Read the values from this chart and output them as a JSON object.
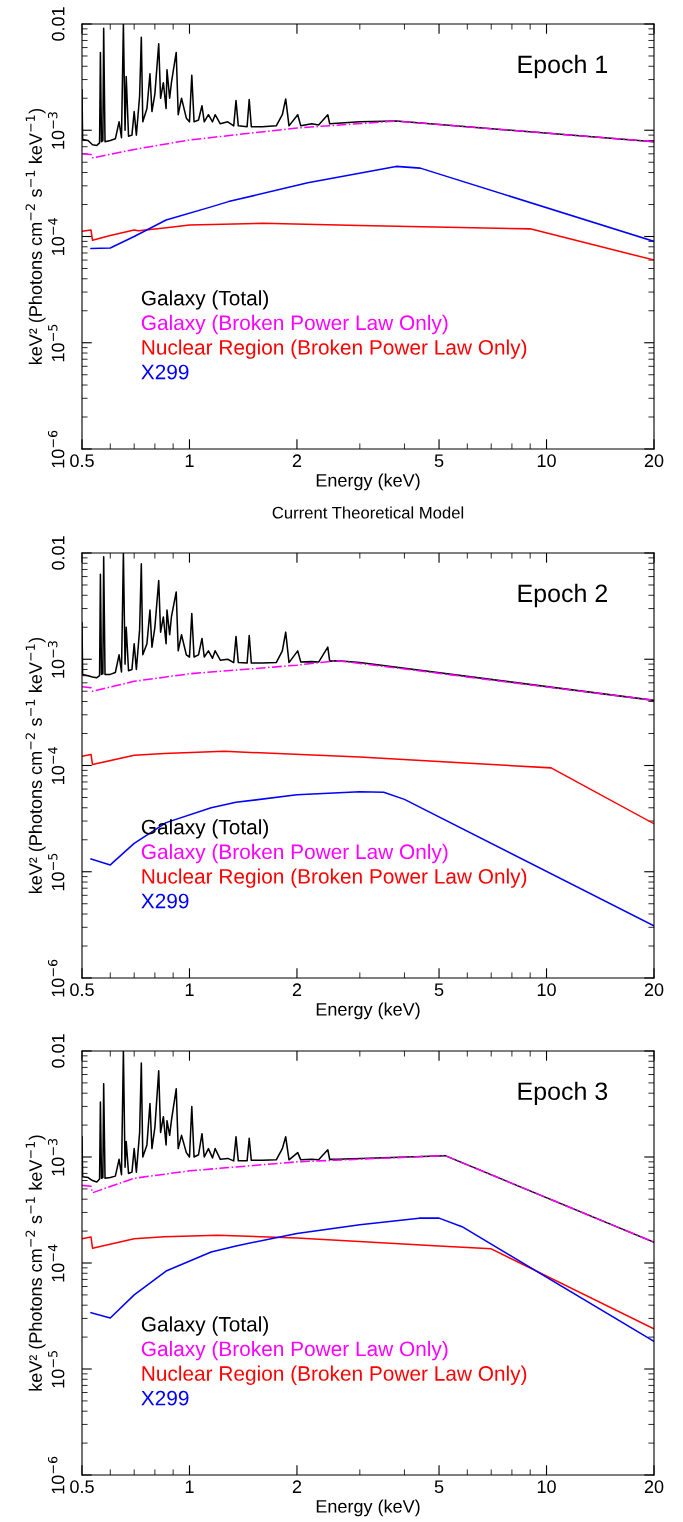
{
  "chart_data": [
    {
      "type": "line",
      "title": "Epoch 1",
      "xlabel": "Energy (keV)",
      "ylabel": "keV² (Photons cm$^{−2}$ s$^{−1}$ keV$^{−1}$)",
      "annotations": [
        "Current Theoretical Model"
      ],
      "log": "xy",
      "xlim": [
        0.5,
        20
      ],
      "ylim": [
        1e-06,
        0.01
      ],
      "xticks": [
        0.5,
        1,
        2,
        5,
        10,
        20
      ],
      "yticks": [
        {
          "value": 1e-06,
          "label": "10$^{−6}$"
        },
        {
          "value": 1e-05,
          "label": "10$^{−5}$"
        },
        {
          "value": 0.0001,
          "label": "10$^{−4}$"
        },
        {
          "value": 0.001,
          "label": "10$^{−3}$"
        },
        {
          "value": 0.01,
          "label": "0.01"
        }
      ],
      "legend": "bottom left",
      "grid": false,
      "series": [
        {
          "name": "Galaxy (Total)",
          "color": "#000000",
          "line_style": "solid",
          "x": [
            0.5,
            0.502,
            0.52,
            0.535,
            0.55,
            0.56,
            0.563,
            0.567,
            0.572,
            0.575,
            0.58,
            0.6,
            0.62,
            0.635,
            0.645,
            0.653,
            0.66,
            0.665,
            0.675,
            0.69,
            0.7,
            0.71,
            0.725,
            0.733,
            0.74,
            0.76,
            0.775,
            0.785,
            0.8,
            0.82,
            0.83,
            0.845,
            0.86,
            0.865,
            0.88,
            0.89,
            0.918,
            0.93,
            0.95,
            0.98,
            1.0,
            1.015,
            1.03,
            1.06,
            1.084,
            1.1,
            1.13,
            1.16,
            1.18,
            1.22,
            1.28,
            1.33,
            1.35,
            1.37,
            1.45,
            1.47,
            1.49,
            1.6,
            1.75,
            1.82,
            1.86,
            1.9,
            2.01,
            2.05,
            2.2,
            2.3,
            2.44,
            2.47,
            3.0,
            3.79,
            20
          ],
          "values": [
            0.0024,
            0.00082,
            0.0008,
            0.00073,
            0.00072,
            0.00076,
            0.0054,
            0.00078,
            0.0008,
            0.0091,
            0.00078,
            0.0008,
            0.00083,
            0.0012,
            0.00085,
            0.01,
            0.001,
            0.0032,
            0.00088,
            0.0009,
            0.0015,
            0.0009,
            0.0021,
            0.0075,
            0.0012,
            0.0016,
            0.0034,
            0.0015,
            0.0022,
            0.0065,
            0.002,
            0.0028,
            0.0016,
            0.0037,
            0.002,
            0.0028,
            0.0054,
            0.0014,
            0.002,
            0.0013,
            0.0012,
            0.0033,
            0.0012,
            0.00125,
            0.0017,
            0.0012,
            0.0014,
            0.0012,
            0.0014,
            0.00115,
            0.0012,
            0.0011,
            0.0019,
            0.0011,
            0.00108,
            0.00195,
            0.00108,
            0.00108,
            0.0011,
            0.0014,
            0.00197,
            0.0011,
            0.0014,
            0.0011,
            0.00115,
            0.00112,
            0.0014,
            0.00115,
            0.0012,
            0.00122,
            0.00078
          ]
        },
        {
          "name": "Galaxy (Broken Power Law Only)",
          "color": "#ff00ff",
          "line_style": "dashdot",
          "x": [
            0.5,
            0.53,
            0.535,
            0.7,
            1.0,
            2.0,
            3.79,
            20
          ],
          "values": [
            0.0006,
            0.00059,
            0.00055,
            0.00066,
            0.00081,
            0.00105,
            0.00122,
            0.00078
          ]
        },
        {
          "name": "Nuclear Region (Broken Power Law Only)",
          "color": "#ff0000",
          "line_style": "solid",
          "x": [
            0.5,
            0.53,
            0.535,
            0.6,
            0.7,
            0.72,
            0.85,
            1.0,
            1.6,
            3.0,
            9.0,
            20
          ],
          "values": [
            0.000112,
            0.000115,
            9.2e-05,
            0.000102,
            0.000115,
            0.000113,
            0.00012,
            0.000128,
            0.000133,
            0.000127,
            0.000118,
            6e-05
          ]
        },
        {
          "name": "X299",
          "color": "#0000ff",
          "line_style": "solid",
          "x": [
            0.53,
            0.6,
            0.7,
            0.86,
            1.15,
            1.286,
            2.145,
            3.79,
            4.43,
            20
          ],
          "values": [
            7.7e-05,
            7.8e-05,
            0.0001,
            0.000143,
            0.00019,
            0.000213,
            0.00032,
            0.000457,
            0.00044,
            9e-05
          ]
        }
      ]
    },
    {
      "type": "line",
      "title": "Epoch 2",
      "xlabel": "Energy (keV)",
      "ylabel": "keV² (Photons cm$^{−2}$ s$^{−1}$ keV$^{−1}$)",
      "log": "xy",
      "xlim": [
        0.5,
        20
      ],
      "ylim": [
        1e-06,
        0.01
      ],
      "xticks": [
        0.5,
        1,
        2,
        5,
        10,
        20
      ],
      "yticks": [
        {
          "value": 1e-06,
          "label": "10$^{−6}$"
        },
        {
          "value": 1e-05,
          "label": "10$^{−5}$"
        },
        {
          "value": 0.0001,
          "label": "10$^{−4}$"
        },
        {
          "value": 0.001,
          "label": "10$^{−3}$"
        },
        {
          "value": 0.01,
          "label": "0.01"
        }
      ],
      "legend": "bottom left",
      "grid": false,
      "series": [
        {
          "name": "Galaxy (Total)",
          "color": "#000000",
          "line_style": "solid",
          "x": [
            0.5,
            0.502,
            0.52,
            0.535,
            0.55,
            0.56,
            0.563,
            0.567,
            0.572,
            0.575,
            0.58,
            0.6,
            0.62,
            0.635,
            0.645,
            0.653,
            0.66,
            0.665,
            0.675,
            0.69,
            0.7,
            0.71,
            0.725,
            0.733,
            0.74,
            0.76,
            0.775,
            0.785,
            0.8,
            0.82,
            0.83,
            0.845,
            0.86,
            0.865,
            0.88,
            0.89,
            0.918,
            0.93,
            0.95,
            0.98,
            1.0,
            1.015,
            1.03,
            1.06,
            1.084,
            1.1,
            1.13,
            1.16,
            1.18,
            1.22,
            1.28,
            1.33,
            1.35,
            1.37,
            1.45,
            1.47,
            1.49,
            1.6,
            1.75,
            1.82,
            1.86,
            1.9,
            2.01,
            2.05,
            2.2,
            2.3,
            2.44,
            2.47,
            2.6,
            3.0,
            20
          ],
          "values": [
            0.0022,
            0.00072,
            0.0007,
            0.00068,
            0.00067,
            0.0007,
            0.0063,
            0.00072,
            0.00073,
            0.0092,
            0.00072,
            0.00072,
            0.00075,
            0.0011,
            0.00076,
            0.01,
            0.0009,
            0.002,
            0.00078,
            0.0008,
            0.0014,
            0.0008,
            0.0019,
            0.0079,
            0.0011,
            0.0014,
            0.0029,
            0.0013,
            0.002,
            0.0055,
            0.0018,
            0.0025,
            0.0014,
            0.0029,
            0.0017,
            0.0025,
            0.0043,
            0.0012,
            0.0017,
            0.0011,
            0.00105,
            0.0027,
            0.00105,
            0.0011,
            0.00157,
            0.00105,
            0.0012,
            0.00102,
            0.0012,
            0.00098,
            0.001,
            0.00093,
            0.00164,
            0.00093,
            0.00092,
            0.00167,
            0.00092,
            0.00092,
            0.00093,
            0.0012,
            0.0018,
            0.00093,
            0.0012,
            0.00094,
            0.00095,
            0.00094,
            0.0013,
            0.00096,
            0.00097,
            0.00093,
            0.00041
          ]
        },
        {
          "name": "Galaxy (Broken Power Law Only)",
          "color": "#ff00ff",
          "line_style": "dashdot",
          "x": [
            0.5,
            0.53,
            0.535,
            0.7,
            1.0,
            2.0,
            2.6,
            20
          ],
          "values": [
            0.00055,
            0.00054,
            0.0005,
            0.00062,
            0.00073,
            0.00088,
            0.00097,
            0.00041
          ]
        },
        {
          "name": "Nuclear Region (Broken Power Law Only)",
          "color": "#ff0000",
          "line_style": "solid",
          "x": [
            0.5,
            0.53,
            0.535,
            0.7,
            0.85,
            1.25,
            3.0,
            10.3,
            20
          ],
          "values": [
            0.000122,
            0.000127,
            0.000102,
            0.000125,
            0.00013,
            0.000136,
            0.00012,
            9.5e-05,
            2.83e-05
          ]
        },
        {
          "name": "X299",
          "color": "#0000ff",
          "line_style": "solid",
          "x": [
            0.53,
            0.6,
            0.7,
            0.86,
            1.15,
            1.35,
            2.0,
            3.0,
            3.5,
            4.0,
            20
          ],
          "values": [
            1.32e-05,
            1.16e-05,
            1.85e-05,
            2.9e-05,
            4e-05,
            4.5e-05,
            5.3e-05,
            5.65e-05,
            5.6e-05,
            4.8e-05,
            3.1e-06
          ]
        }
      ]
    },
    {
      "type": "line",
      "title": "Epoch 3",
      "xlabel": "Energy (keV)",
      "ylabel": "keV² (Photons cm$^{−2}$ s$^{−1}$ keV$^{−1}$)",
      "log": "xy",
      "xlim": [
        0.5,
        20
      ],
      "ylim": [
        1e-06,
        0.01
      ],
      "xticks": [
        0.5,
        1,
        2,
        5,
        10,
        20
      ],
      "yticks": [
        {
          "value": 1e-06,
          "label": "10$^{−6}$"
        },
        {
          "value": 1e-05,
          "label": "10$^{−5}$"
        },
        {
          "value": 0.0001,
          "label": "10$^{−4}$"
        },
        {
          "value": 0.001,
          "label": "10$^{−3}$"
        },
        {
          "value": 0.01,
          "label": "0.01"
        }
      ],
      "legend": "bottom left",
      "grid": false,
      "series": [
        {
          "name": "Galaxy (Total)",
          "color": "#000000",
          "line_style": "solid",
          "x": [
            0.5,
            0.502,
            0.52,
            0.535,
            0.55,
            0.56,
            0.563,
            0.567,
            0.572,
            0.575,
            0.58,
            0.6,
            0.62,
            0.635,
            0.645,
            0.653,
            0.66,
            0.665,
            0.675,
            0.69,
            0.7,
            0.71,
            0.725,
            0.733,
            0.74,
            0.76,
            0.775,
            0.785,
            0.8,
            0.82,
            0.83,
            0.845,
            0.86,
            0.865,
            0.88,
            0.89,
            0.918,
            0.93,
            0.95,
            0.98,
            1.0,
            1.015,
            1.03,
            1.06,
            1.084,
            1.1,
            1.13,
            1.16,
            1.18,
            1.22,
            1.28,
            1.33,
            1.35,
            1.37,
            1.45,
            1.47,
            1.49,
            1.6,
            1.75,
            1.82,
            1.86,
            1.9,
            2.01,
            2.05,
            2.2,
            2.3,
            2.44,
            2.47,
            2.6,
            5.2,
            20
          ],
          "values": [
            0.00155,
            0.00065,
            0.00064,
            0.0006,
            0.00058,
            0.00062,
            0.0033,
            0.00063,
            0.00064,
            0.0049,
            0.00063,
            0.00064,
            0.00066,
            0.00095,
            0.00068,
            0.01,
            0.0008,
            0.0014,
            0.0007,
            0.00072,
            0.0012,
            0.00072,
            0.0017,
            0.0077,
            0.001,
            0.0013,
            0.0032,
            0.0012,
            0.0019,
            0.0065,
            0.0017,
            0.0024,
            0.0013,
            0.0022,
            0.0016,
            0.0022,
            0.0044,
            0.0012,
            0.0016,
            0.0011,
            0.001,
            0.003,
            0.001,
            0.00105,
            0.00166,
            0.001,
            0.0012,
            0.00098,
            0.0012,
            0.00095,
            0.00097,
            0.00092,
            0.00155,
            0.00092,
            0.00092,
            0.0015,
            0.00093,
            0.00093,
            0.00094,
            0.0012,
            0.00155,
            0.00094,
            0.0011,
            0.00094,
            0.00095,
            0.00094,
            0.00117,
            0.00095,
            0.00095,
            0.00103,
            0.000157
          ]
        },
        {
          "name": "Galaxy (Broken Power Law Only)",
          "color": "#ff00ff",
          "line_style": "dashdot",
          "x": [
            0.5,
            0.53,
            0.535,
            0.7,
            1.0,
            2.0,
            5.2,
            20
          ],
          "values": [
            0.00054,
            0.00053,
            0.00046,
            0.00063,
            0.00074,
            0.0009,
            0.00103,
            0.000157
          ]
        },
        {
          "name": "Nuclear Region (Broken Power Law Only)",
          "color": "#ff0000",
          "line_style": "solid",
          "x": [
            0.5,
            0.53,
            0.535,
            0.7,
            0.85,
            1.2,
            2.0,
            5.0,
            7.0,
            20
          ],
          "values": [
            0.000169,
            0.000176,
            0.000138,
            0.000169,
            0.000177,
            0.000183,
            0.000172,
            0.000145,
            0.000136,
            2.39e-05
          ]
        },
        {
          "name": "X299",
          "color": "#0000ff",
          "line_style": "solid",
          "x": [
            0.53,
            0.6,
            0.7,
            0.86,
            1.15,
            1.35,
            2.0,
            3.0,
            4.4,
            5.0,
            5.8,
            20
          ],
          "values": [
            3.4e-05,
            3.03e-05,
            5e-05,
            8.4e-05,
            0.000127,
            0.000145,
            0.00019,
            0.00023,
            0.000265,
            0.000265,
            0.00022,
            1.82e-05
          ]
        }
      ]
    }
  ]
}
